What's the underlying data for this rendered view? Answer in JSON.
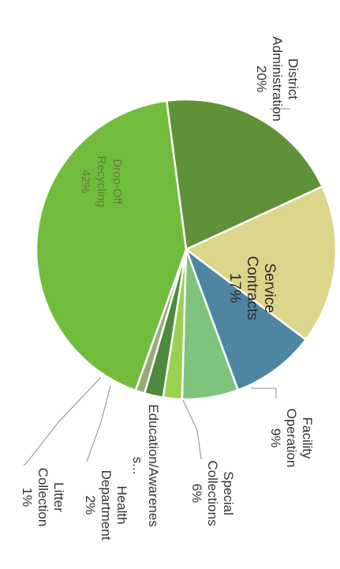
{
  "chart_data": {
    "type": "pie",
    "title": "",
    "slices": [
      {
        "label": "District Administration",
        "lines": [
          "District",
          "Administration",
          "20%"
        ],
        "value": 20,
        "color": "#5f9138"
      },
      {
        "label": "Service Contracts",
        "lines": [
          "Service",
          "Contracts",
          "17%"
        ],
        "value": 17,
        "color": "#dcd58c"
      },
      {
        "label": "Facility Operation",
        "lines": [
          "Facility",
          "Operation",
          "9%"
        ],
        "value": 9,
        "color": "#4e86a2"
      },
      {
        "label": "Special Collections",
        "lines": [
          "Special",
          "Collections",
          "6%"
        ],
        "value": 6,
        "color": "#7ec47c"
      },
      {
        "label": "Education/Awareness",
        "lines": [
          "Education/Awarenes",
          "s..."
        ],
        "value": 2,
        "color": "#9ad152"
      },
      {
        "label": "Health Department",
        "lines": [
          "Health",
          "Department",
          "2%"
        ],
        "value": 2,
        "color": "#4c8a3e"
      },
      {
        "label": "Litter Collection",
        "lines": [
          "Litter",
          "Collection",
          "1%"
        ],
        "value": 1,
        "color": "#99aa7a"
      },
      {
        "label": "Drop-Off Recycling",
        "lines": [
          "Drop-Off",
          "Recycling",
          "42%"
        ],
        "value": 42,
        "color": "#72bc3d"
      }
    ]
  }
}
